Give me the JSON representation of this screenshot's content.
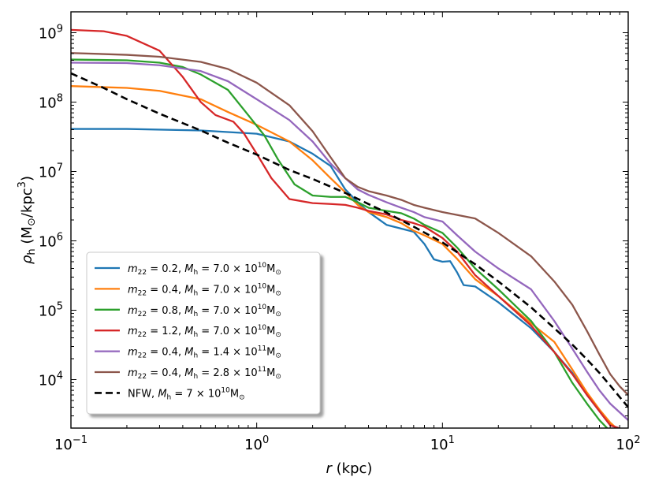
{
  "chart_data": {
    "type": "line",
    "title": "",
    "xlabel": "r (kpc)",
    "ylabel": "ρh (M⊙/kpc3)",
    "xscale": "log",
    "yscale": "log",
    "xlim": [
      0.1,
      100
    ],
    "ylim": [
      2000,
      2000000000
    ],
    "legend_position": "lower-left",
    "x_ticks": [
      {
        "value": 0.1,
        "base": "10",
        "exp": "−1"
      },
      {
        "value": 1,
        "base": "10",
        "exp": "0"
      },
      {
        "value": 10,
        "base": "10",
        "exp": "1"
      },
      {
        "value": 100,
        "base": "10",
        "exp": "2"
      }
    ],
    "y_ticks": [
      {
        "value": 10000,
        "base": "10",
        "exp": "4"
      },
      {
        "value": 100000,
        "base": "10",
        "exp": "5"
      },
      {
        "value": 1000000,
        "base": "10",
        "exp": "6"
      },
      {
        "value": 10000000,
        "base": "10",
        "exp": "7"
      },
      {
        "value": 100000000,
        "base": "10",
        "exp": "8"
      },
      {
        "value": 1000000000,
        "base": "10",
        "exp": "9"
      }
    ],
    "series": [
      {
        "name": "m22 = 0.2, Mh = 7.0 × 10^10 M⊙",
        "m22": "0.2",
        "mh_mant": "7.0",
        "mh_exp": "10",
        "color": "#1f77b4",
        "dash": "solid",
        "points": [
          [
            0.1,
            41000000.0
          ],
          [
            0.2,
            41000000.0
          ],
          [
            0.5,
            39000000.0
          ],
          [
            1,
            35000000.0
          ],
          [
            1.5,
            27000000.0
          ],
          [
            2,
            18000000.0
          ],
          [
            2.5,
            12000000.0
          ],
          [
            3,
            5500000.0
          ],
          [
            3.5,
            3600000.0
          ],
          [
            4,
            2600000.0
          ],
          [
            5,
            1700000.0
          ],
          [
            6,
            1500000.0
          ],
          [
            7,
            1350000.0
          ],
          [
            8,
            900000.0
          ],
          [
            9,
            540000.0
          ],
          [
            10,
            500000.0
          ],
          [
            11,
            510000.0
          ],
          [
            12,
            350000.0
          ],
          [
            13,
            230000.0
          ],
          [
            15,
            220000.0
          ],
          [
            20,
            130000.0
          ],
          [
            30,
            55000.0
          ],
          [
            40,
            25000.0
          ],
          [
            50,
            12500.0
          ],
          [
            60,
            6000.0
          ],
          [
            70,
            3500.0
          ],
          [
            80,
            2200.0
          ],
          [
            100,
            1800.0
          ]
        ]
      },
      {
        "name": "m22 = 0.4, Mh = 7.0 × 10^10 M⊙",
        "m22": "0.4",
        "mh_mant": "7.0",
        "mh_exp": "10",
        "color": "#ff7f0e",
        "dash": "solid",
        "points": [
          [
            0.1,
            170000000.0
          ],
          [
            0.2,
            160000000.0
          ],
          [
            0.3,
            145000000.0
          ],
          [
            0.5,
            110000000.0
          ],
          [
            0.7,
            72000000.0
          ],
          [
            1,
            47000000.0
          ],
          [
            1.5,
            27000000.0
          ],
          [
            2,
            14500000.0
          ],
          [
            2.5,
            8000000.0
          ],
          [
            3,
            5000000.0
          ],
          [
            3.5,
            3300000.0
          ],
          [
            4,
            2600000.0
          ],
          [
            5,
            2200000.0
          ],
          [
            6,
            1800000.0
          ],
          [
            7,
            1400000.0
          ],
          [
            8,
            1200000.0
          ],
          [
            10,
            900000.0
          ],
          [
            12,
            550000.0
          ],
          [
            15,
            280000.0
          ],
          [
            20,
            160000.0
          ],
          [
            30,
            65000.0
          ],
          [
            40,
            35000.0
          ],
          [
            50,
            14000.0
          ],
          [
            60,
            6500.0
          ],
          [
            70,
            3700.0
          ],
          [
            80,
            2400.0
          ],
          [
            90,
            1800.0
          ]
        ]
      },
      {
        "name": "m22 = 0.8, Mh = 7.0 × 10^10 M⊙",
        "m22": "0.8",
        "mh_mant": "7.0",
        "mh_exp": "10",
        "color": "#2ca02c",
        "dash": "solid",
        "points": [
          [
            0.1,
            410000000.0
          ],
          [
            0.2,
            400000000.0
          ],
          [
            0.3,
            370000000.0
          ],
          [
            0.4,
            320000000.0
          ],
          [
            0.5,
            250000000.0
          ],
          [
            0.7,
            150000000.0
          ],
          [
            0.9,
            65000000.0
          ],
          [
            1.1,
            33000000.0
          ],
          [
            1.3,
            15000000.0
          ],
          [
            1.6,
            6500000.0
          ],
          [
            2,
            4500000.0
          ],
          [
            2.5,
            4300000.0
          ],
          [
            3,
            4300000.0
          ],
          [
            3.5,
            3600000.0
          ],
          [
            4,
            3000000.0
          ],
          [
            5,
            2700000.0
          ],
          [
            6,
            2500000.0
          ],
          [
            7,
            2100000.0
          ],
          [
            8,
            1700000.0
          ],
          [
            10,
            1300000.0
          ],
          [
            12,
            800000.0
          ],
          [
            15,
            400000.0
          ],
          [
            20,
            200000.0
          ],
          [
            30,
            70000.0
          ],
          [
            40,
            25000.0
          ],
          [
            50,
            9000.0
          ],
          [
            60,
            4500.0
          ],
          [
            70,
            2600.0
          ],
          [
            80,
            1800.0
          ]
        ]
      },
      {
        "name": "m22 = 1.2, Mh = 7.0 × 10^10 M⊙",
        "m22": "1.2",
        "mh_mant": "7.0",
        "mh_exp": "10",
        "color": "#d62728",
        "dash": "solid",
        "points": [
          [
            0.1,
            1100000000.0
          ],
          [
            0.15,
            1050000000.0
          ],
          [
            0.2,
            900000000.0
          ],
          [
            0.3,
            550000000.0
          ],
          [
            0.4,
            230000000.0
          ],
          [
            0.5,
            100000000.0
          ],
          [
            0.6,
            65000000.0
          ],
          [
            0.75,
            52000000.0
          ],
          [
            0.85,
            36000000.0
          ],
          [
            1,
            18000000.0
          ],
          [
            1.2,
            8000000.0
          ],
          [
            1.5,
            4000000.0
          ],
          [
            2,
            3500000.0
          ],
          [
            2.5,
            3400000.0
          ],
          [
            3,
            3300000.0
          ],
          [
            3.5,
            3000000.0
          ],
          [
            4,
            2700000.0
          ],
          [
            5,
            2400000.0
          ],
          [
            6,
            2000000.0
          ],
          [
            7,
            1800000.0
          ],
          [
            8,
            1600000.0
          ],
          [
            10,
            1100000.0
          ],
          [
            12,
            700000.0
          ],
          [
            15,
            320000.0
          ],
          [
            20,
            160000.0
          ],
          [
            30,
            60000.0
          ],
          [
            40,
            25000.0
          ],
          [
            50,
            12000.0
          ],
          [
            60,
            6000.0
          ],
          [
            70,
            3500.0
          ],
          [
            80,
            2200.0
          ],
          [
            100,
            1800.0
          ]
        ]
      },
      {
        "name": "m22 = 0.4, Mh = 1.4 × 10^11 M⊙",
        "m22": "0.4",
        "mh_mant": "1.4",
        "mh_exp": "11",
        "color": "#9467bd",
        "dash": "solid",
        "points": [
          [
            0.1,
            370000000.0
          ],
          [
            0.2,
            365000000.0
          ],
          [
            0.3,
            340000000.0
          ],
          [
            0.5,
            280000000.0
          ],
          [
            0.7,
            200000000.0
          ],
          [
            1,
            110000000.0
          ],
          [
            1.5,
            55000000.0
          ],
          [
            2,
            27000000.0
          ],
          [
            2.5,
            13000000.0
          ],
          [
            3,
            8000000.0
          ],
          [
            3.5,
            5500000.0
          ],
          [
            4,
            4600000.0
          ],
          [
            5,
            3600000.0
          ],
          [
            6,
            3000000.0
          ],
          [
            7,
            2600000.0
          ],
          [
            8,
            2200000.0
          ],
          [
            10,
            1900000.0
          ],
          [
            12,
            1200000.0
          ],
          [
            15,
            700000.0
          ],
          [
            20,
            400000.0
          ],
          [
            30,
            200000.0
          ],
          [
            40,
            70000.0
          ],
          [
            50,
            28000.0
          ],
          [
            60,
            13000.0
          ],
          [
            70,
            7000.0
          ],
          [
            80,
            4500.0
          ],
          [
            100,
            2600.0
          ]
        ]
      },
      {
        "name": "m22 = 0.4, Mh = 2.8 × 10^11 M⊙",
        "m22": "0.4",
        "mh_mant": "2.8",
        "mh_exp": "11",
        "color": "#8c564b",
        "dash": "solid",
        "points": [
          [
            0.1,
            510000000.0
          ],
          [
            0.2,
            480000000.0
          ],
          [
            0.3,
            450000000.0
          ],
          [
            0.5,
            380000000.0
          ],
          [
            0.7,
            300000000.0
          ],
          [
            1,
            190000000.0
          ],
          [
            1.5,
            90000000.0
          ],
          [
            2,
            38000000.0
          ],
          [
            2.5,
            16000000.0
          ],
          [
            3,
            8000000.0
          ],
          [
            3.5,
            6000000.0
          ],
          [
            4,
            5200000.0
          ],
          [
            5,
            4500000.0
          ],
          [
            6,
            3900000.0
          ],
          [
            7,
            3300000.0
          ],
          [
            8,
            3000000.0
          ],
          [
            10,
            2600000.0
          ],
          [
            15,
            2100000.0
          ],
          [
            20,
            1300000.0
          ],
          [
            30,
            600000.0
          ],
          [
            40,
            260000.0
          ],
          [
            50,
            120000.0
          ],
          [
            60,
            50000.0
          ],
          [
            70,
            23000.0
          ],
          [
            80,
            12000.0
          ],
          [
            90,
            8000.0
          ],
          [
            100,
            6000.0
          ]
        ]
      },
      {
        "name": "NFW, Mh = 7 × 10^10 M⊙",
        "label_prefix": "NFW, ",
        "mh_mant": "7",
        "mh_exp": "10",
        "color": "#000000",
        "dash": "dashed",
        "points": [
          [
            0.1,
            260000000.0
          ],
          [
            0.15,
            160000000.0
          ],
          [
            0.2,
            110000000.0
          ],
          [
            0.3,
            68000000.0
          ],
          [
            0.5,
            39000000.0
          ],
          [
            0.7,
            26000000.0
          ],
          [
            1,
            17500000.0
          ],
          [
            1.5,
            10500000.0
          ],
          [
            2,
            7800000.0
          ],
          [
            3,
            4900000.0
          ],
          [
            5,
            2550000.0
          ],
          [
            7,
            1600000.0
          ],
          [
            10,
            950000.0
          ],
          [
            15,
            460000.0
          ],
          [
            20,
            260000.0
          ],
          [
            30,
            110000.0
          ],
          [
            40,
            55000.0
          ],
          [
            50,
            32000.0
          ],
          [
            60,
            19500.0
          ],
          [
            70,
            12500.0
          ],
          [
            80,
            8200.0
          ],
          [
            90,
            5600.0
          ],
          [
            100,
            4000.0
          ]
        ]
      }
    ]
  }
}
